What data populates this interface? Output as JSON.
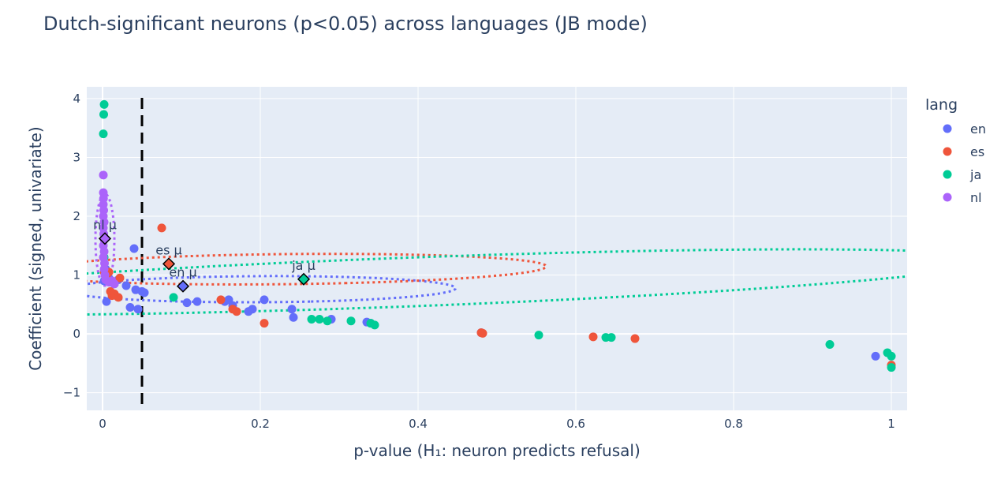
{
  "chart_data": {
    "type": "scatter",
    "title": "Dutch-significant neurons (p<0.05) across languages (JB mode)",
    "xlabel": "p-value (H₁: neuron predicts refusal)",
    "ylabel": "Coefficient (signed, univariate)",
    "xlim": [
      -0.02,
      1.02
    ],
    "ylim": [
      -1.3,
      4.2
    ],
    "xticks": [
      0,
      0.2,
      0.4,
      0.6,
      0.8,
      1
    ],
    "xtick_labels": [
      "0",
      "0.2",
      "0.4",
      "0.6",
      "0.8",
      "1"
    ],
    "yticks": [
      -1,
      0,
      1,
      2,
      3,
      4
    ],
    "ytick_labels": [
      "−1",
      "0",
      "1",
      "2",
      "3",
      "4"
    ],
    "grid": true,
    "legend_title": "lang",
    "legend_position": "right",
    "threshold_line": {
      "x": 0.05,
      "style": "dashed",
      "color": "#000000"
    },
    "series": [
      {
        "name": "en",
        "color": "#636efa",
        "points": [
          [
            0.002,
            0.9
          ],
          [
            0.003,
            1.0
          ],
          [
            0.004,
            1.1
          ],
          [
            0.005,
            0.55
          ],
          [
            0.008,
            0.95
          ],
          [
            0.01,
            0.88
          ],
          [
            0.015,
            0.85
          ],
          [
            0.02,
            0.92
          ],
          [
            0.03,
            0.82
          ],
          [
            0.035,
            0.45
          ],
          [
            0.04,
            1.45
          ],
          [
            0.042,
            0.75
          ],
          [
            0.045,
            0.42
          ],
          [
            0.05,
            0.72
          ],
          [
            0.053,
            0.7
          ],
          [
            0.107,
            0.53
          ],
          [
            0.12,
            0.55
          ],
          [
            0.155,
            0.55
          ],
          [
            0.16,
            0.58
          ],
          [
            0.165,
            0.48
          ],
          [
            0.185,
            0.38
          ],
          [
            0.19,
            0.42
          ],
          [
            0.205,
            0.58
          ],
          [
            0.24,
            0.42
          ],
          [
            0.242,
            0.28
          ],
          [
            0.29,
            0.25
          ],
          [
            0.335,
            0.2
          ],
          [
            0.34,
            0.18
          ],
          [
            0.48,
            0.02
          ],
          [
            0.98,
            -0.38
          ]
        ],
        "mean": {
          "x": 0.102,
          "y": 0.81,
          "label": "en μ"
        },
        "ellipse": {
          "cx": 0.2,
          "cy": 0.76,
          "a": 0.22,
          "b": 0.25,
          "angle_deg": -73
        }
      },
      {
        "name": "es",
        "color": "#ef553b",
        "points": [
          [
            0.002,
            1.05
          ],
          [
            0.005,
            0.95
          ],
          [
            0.008,
            1.05
          ],
          [
            0.01,
            0.72
          ],
          [
            0.012,
            0.65
          ],
          [
            0.015,
            0.68
          ],
          [
            0.02,
            0.62
          ],
          [
            0.022,
            0.95
          ],
          [
            0.075,
            1.8
          ],
          [
            0.15,
            0.58
          ],
          [
            0.165,
            0.42
          ],
          [
            0.17,
            0.38
          ],
          [
            0.205,
            0.18
          ],
          [
            0.48,
            0.02
          ],
          [
            0.482,
            0.01
          ],
          [
            0.622,
            -0.05
          ],
          [
            0.675,
            -0.08
          ],
          [
            1.0,
            -0.53
          ]
        ],
        "mean": {
          "x": 0.084,
          "y": 1.19,
          "label": "es μ"
        },
        "ellipse": {
          "cx": 0.23,
          "cy": 1.1,
          "a": 0.25,
          "b": 0.34,
          "angle_deg": -72
        }
      },
      {
        "name": "ja",
        "color": "#00cc96",
        "points": [
          [
            0.002,
            3.9
          ],
          [
            0.0015,
            3.73
          ],
          [
            0.001,
            3.4
          ],
          [
            0.002,
            1.3
          ],
          [
            0.09,
            0.62
          ],
          [
            0.265,
            0.25
          ],
          [
            0.275,
            0.25
          ],
          [
            0.285,
            0.22
          ],
          [
            0.315,
            0.22
          ],
          [
            0.34,
            0.18
          ],
          [
            0.345,
            0.15
          ],
          [
            0.553,
            -0.02
          ],
          [
            0.638,
            -0.06
          ],
          [
            0.645,
            -0.06
          ],
          [
            0.922,
            -0.18
          ],
          [
            0.995,
            -0.32
          ],
          [
            1.0,
            -0.38
          ],
          [
            1.0,
            -0.57
          ]
        ],
        "mean": {
          "x": 0.255,
          "y": 0.93,
          "label": "ja μ"
        },
        "ellipse": {
          "cx": 0.385,
          "cy": 0.88,
          "a": 0.36,
          "b": 0.86,
          "angle_deg": -57
        }
      },
      {
        "name": "nl",
        "color": "#ab63fa",
        "points": [
          [
            0.001,
            2.4
          ],
          [
            0.0012,
            2.3
          ],
          [
            0.001,
            2.2
          ],
          [
            0.0015,
            2.1
          ],
          [
            0.001,
            2.0
          ],
          [
            0.002,
            1.9
          ],
          [
            0.001,
            1.8
          ],
          [
            0.0015,
            1.7
          ],
          [
            0.002,
            1.6
          ],
          [
            0.001,
            1.5
          ],
          [
            0.002,
            1.4
          ],
          [
            0.001,
            1.3
          ],
          [
            0.0025,
            1.2
          ],
          [
            0.002,
            1.1
          ],
          [
            0.003,
            1.0
          ],
          [
            0.001,
            2.7
          ],
          [
            0.004,
            0.92
          ],
          [
            0.008,
            0.88
          ],
          [
            0.012,
            0.9
          ],
          [
            0.015,
            0.85
          ]
        ],
        "mean": {
          "x": 0.003,
          "y": 1.62,
          "label": "nl μ"
        },
        "ellipse": {
          "cx": 0.003,
          "cy": 1.6,
          "a": 0.012,
          "b": 0.78,
          "angle_deg": 0
        }
      }
    ]
  }
}
